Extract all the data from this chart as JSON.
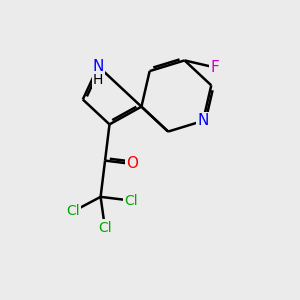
{
  "background_color": "#ebebeb",
  "atom_colors": {
    "C": "#000000",
    "N": "#0000ff",
    "O": "#ff0000",
    "F": "#cc00cc",
    "Cl": "#00aa00",
    "H": "#000000"
  },
  "bond_color": "#000000",
  "bond_width": 1.8,
  "font_size_atoms": 11
}
